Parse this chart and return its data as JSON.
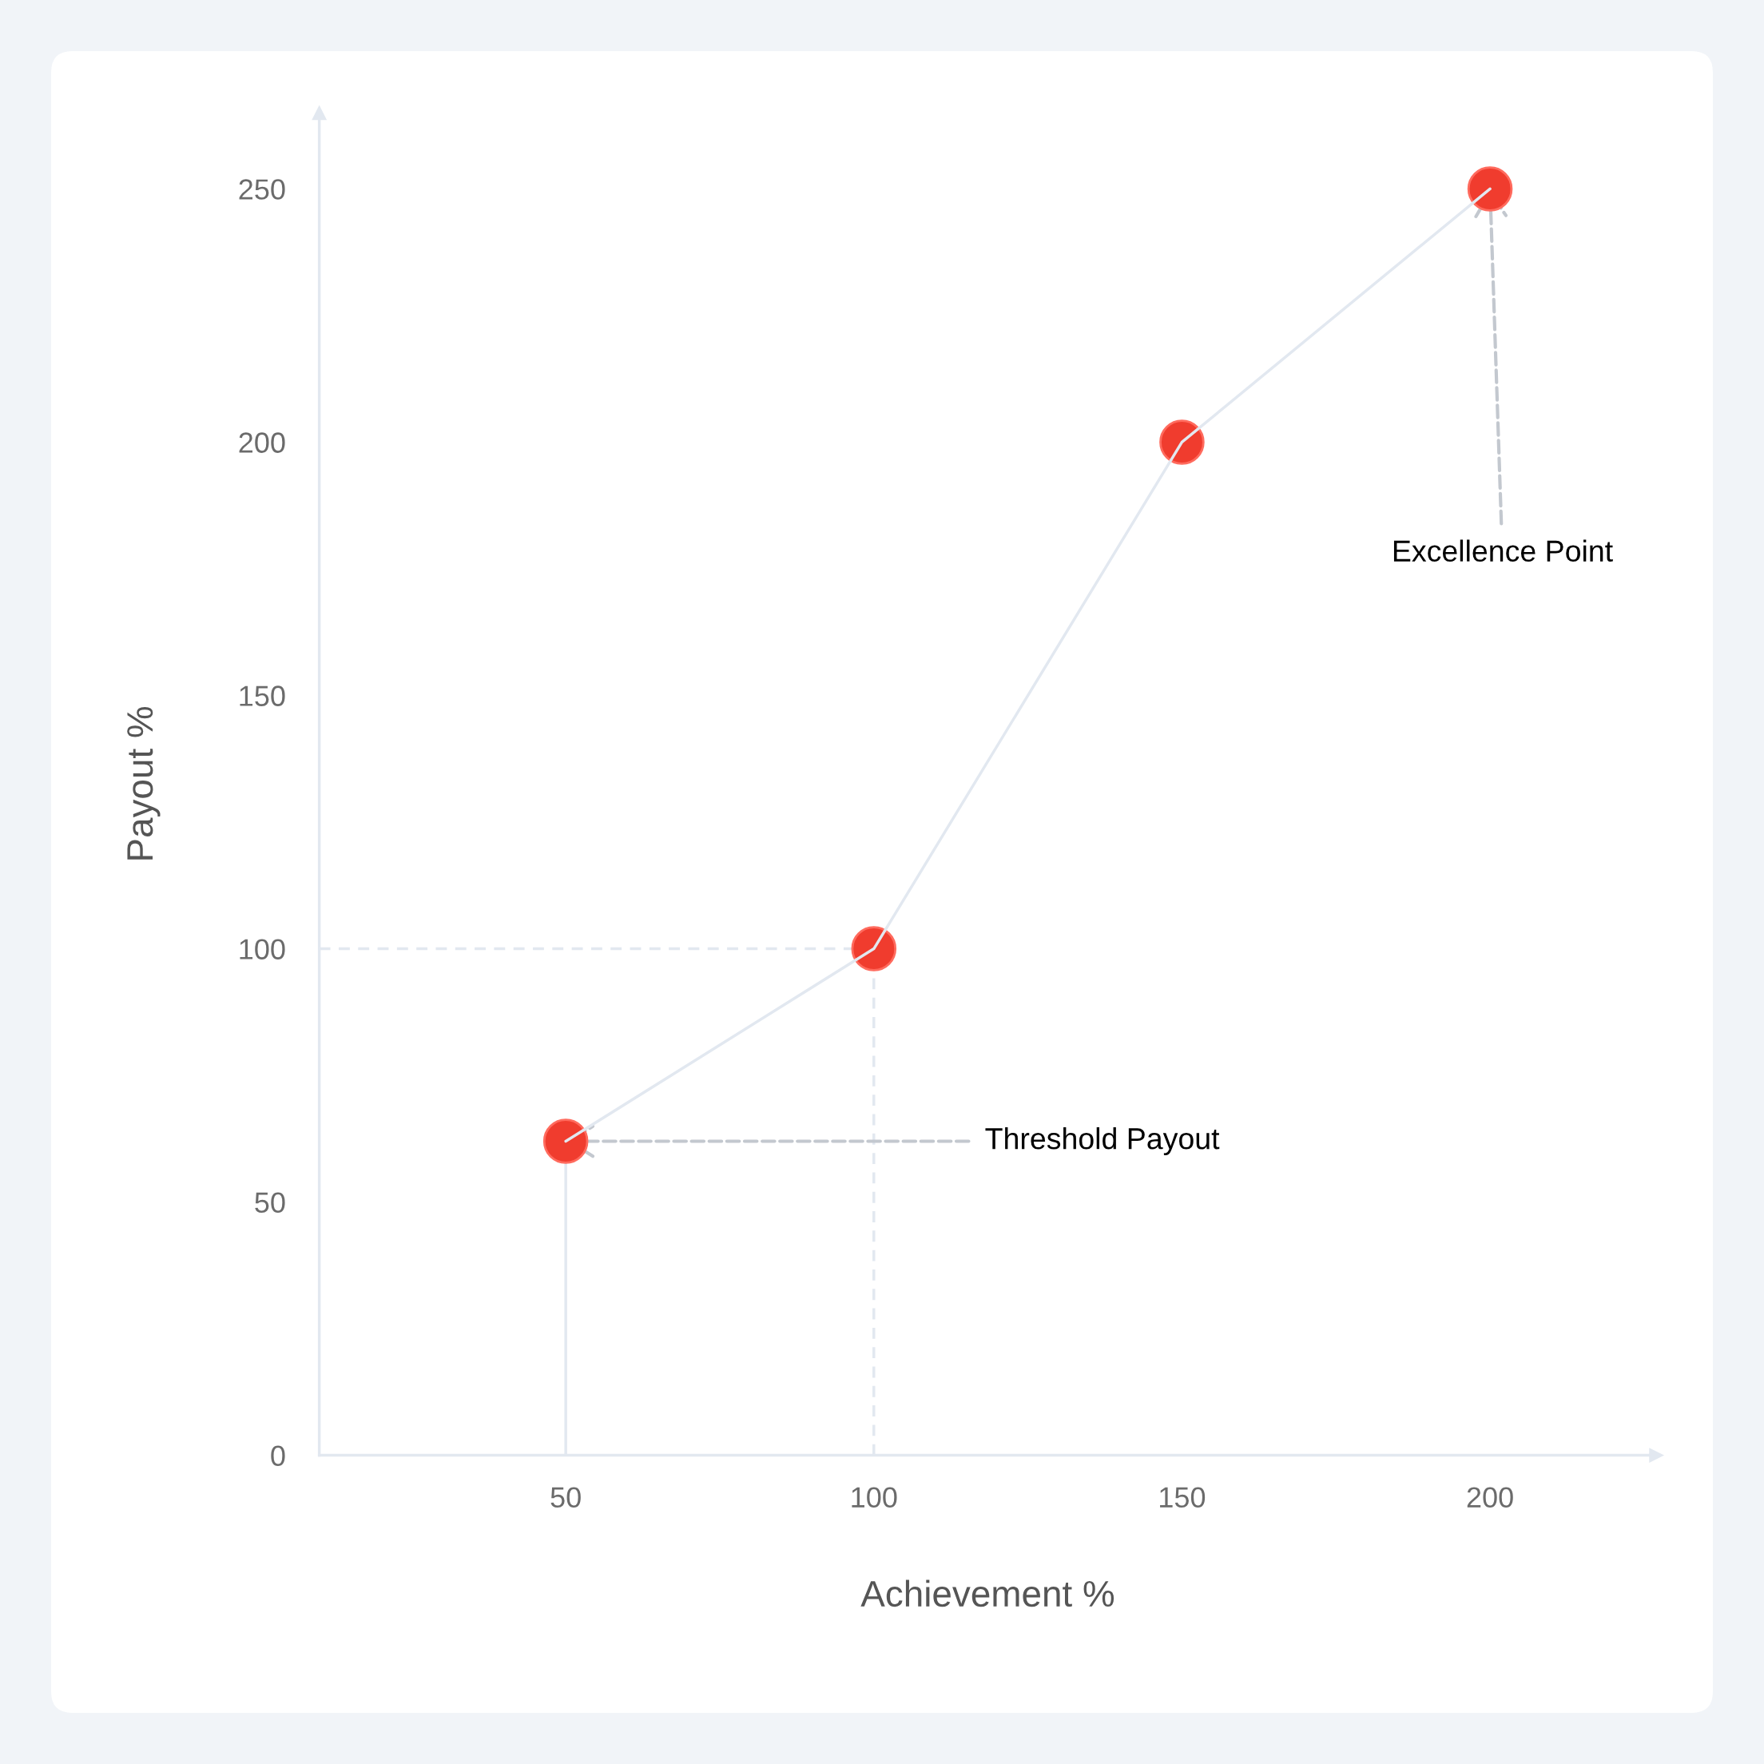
{
  "chart_data": {
    "type": "line",
    "xlabel": "Achievement %",
    "ylabel": "Payout %",
    "x": [
      50,
      100,
      150,
      200
    ],
    "series": [
      {
        "color": "#e2e8f0",
        "values": [
          62,
          100,
          200,
          250
        ]
      },
      {
        "type": "scatter",
        "color": "#f03c2e",
        "values": [
          62,
          100,
          200,
          250
        ]
      }
    ],
    "xlim": [
      10,
      227
    ],
    "xticks": [
      50,
      100,
      150,
      200
    ],
    "ylim": [
      0,
      265
    ],
    "yticks": [
      0,
      50,
      100,
      150,
      200,
      250
    ],
    "line_style": "solid",
    "grid": false,
    "legend": false,
    "ref_lines": [
      {
        "axis": "y",
        "value": 100,
        "color": "#e2e8f0",
        "line_style": "dashed"
      },
      {
        "axis": "x",
        "value": 100,
        "color": "#e2e8f0",
        "line_style": "dashed"
      },
      {
        "axis": "x",
        "value": 50,
        "color": "#e2e8f0",
        "line_style": "solid"
      }
    ],
    "annotations": [
      {
        "text": "Threshold Payout",
        "x": 50,
        "y": 62
      },
      {
        "text": "Excellence Point",
        "x": 200,
        "y": 250
      }
    ]
  }
}
